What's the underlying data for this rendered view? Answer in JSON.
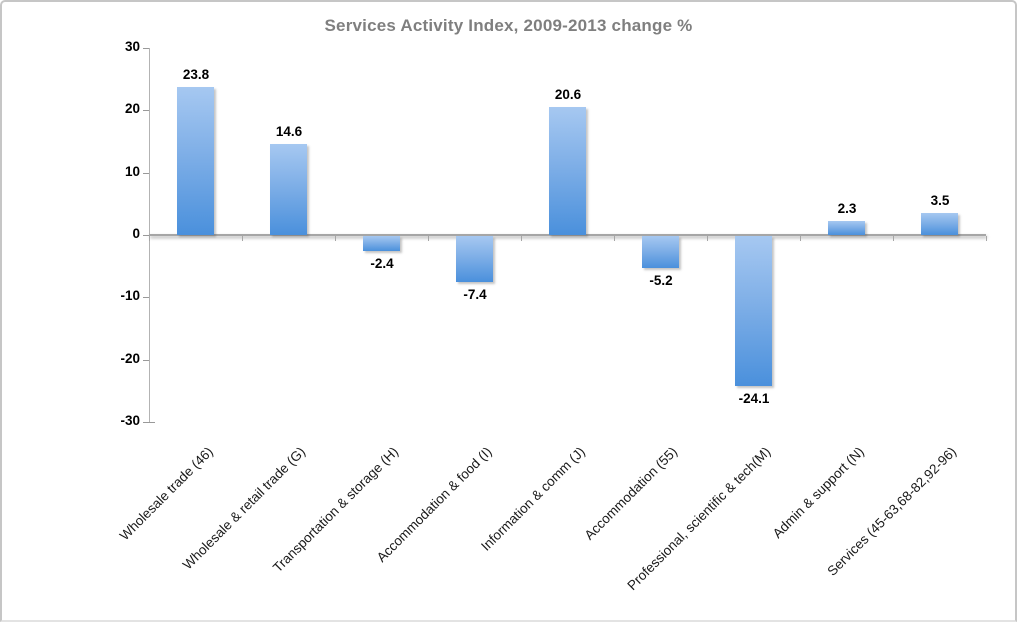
{
  "chart_data": {
    "type": "bar",
    "title": "Services Activity Index, 2009-2013 change %",
    "categories": [
      "Wholesale trade (46)",
      "Wholesale & retail trade (G)",
      "Transportation & storage (H)",
      "Accommodation & food (I)",
      "Information & comm (J)",
      "Accommodation (55)",
      "Professional, scientific & tech(M)",
      "Admin & support (N)",
      "Services (45-63,68-82,92-96)"
    ],
    "values": [
      23.8,
      14.6,
      -2.4,
      -7.4,
      20.6,
      -5.2,
      -24.1,
      2.3,
      3.5
    ],
    "value_labels": [
      "23.8",
      "14.6",
      "-2.4",
      "-7.4",
      "20.6",
      "-5.2",
      "-24.1",
      "2.3",
      "3.5"
    ],
    "xlabel": "",
    "ylabel": "",
    "ylim": [
      -30,
      30
    ],
    "yticks": [
      30,
      20,
      10,
      0,
      -10,
      -20,
      -30
    ],
    "ytick_labels": [
      "30",
      "20",
      "10",
      "0",
      "-10",
      "-20",
      "-30"
    ],
    "grid": false,
    "legend": "none",
    "colors": {
      "bar_gradient_top": "#a6c8f1",
      "bar_gradient_bottom": "#4a90dc",
      "axis_line": "#a6a6a6",
      "y_axis_line": "#b3b3b3",
      "title_text": "#7f7f7f",
      "label_text": "#000000",
      "frame_border": "#c6c6c6",
      "background": "#ffffff"
    }
  }
}
